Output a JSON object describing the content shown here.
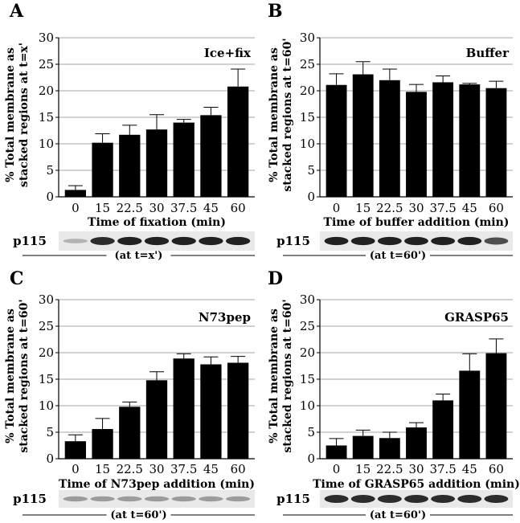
{
  "chart_data": [
    {
      "type": "bar",
      "panel_label": "A",
      "title": "Ice+fix",
      "ylabel": [
        "% Total membrane as",
        "stacked regions at t=x'"
      ],
      "xlabel": "Time of fixation (min)",
      "ylim": [
        0,
        30
      ],
      "yticks": [
        0,
        5,
        10,
        15,
        20,
        25,
        30
      ],
      "categories": [
        "0",
        "15",
        "22.5",
        "30",
        "37.5",
        "45",
        "60"
      ],
      "values": [
        1.3,
        10.2,
        11.7,
        12.7,
        14.0,
        15.4,
        20.8
      ],
      "errors": [
        0.8,
        1.7,
        1.8,
        2.8,
        0.6,
        1.5,
        3.3
      ],
      "blot": {
        "label": "p115",
        "caption": "(at t=x')",
        "intensities": [
          0.25,
          0.85,
          0.9,
          0.9,
          0.9,
          0.9,
          0.9
        ]
      }
    },
    {
      "type": "bar",
      "panel_label": "B",
      "title": "Buffer",
      "ylabel": [
        "% Total membrane as",
        "stacked regions at t=60'"
      ],
      "xlabel": "Time of buffer addition (min)",
      "ylim": [
        0,
        30
      ],
      "yticks": [
        0,
        5,
        10,
        15,
        20,
        25,
        30
      ],
      "categories": [
        "0",
        "15",
        "22.5",
        "30",
        "37.5",
        "45",
        "60"
      ],
      "values": [
        21.1,
        23.1,
        22.0,
        19.8,
        21.6,
        21.2,
        20.5
      ],
      "errors": [
        2.1,
        2.4,
        2.1,
        1.4,
        1.2,
        0.2,
        1.3
      ],
      "blot": {
        "label": "p115",
        "caption": "(at t=60')",
        "intensities": [
          0.9,
          0.9,
          0.9,
          0.9,
          0.9,
          0.9,
          0.7
        ]
      }
    },
    {
      "type": "bar",
      "panel_label": "C",
      "title": "N73pep",
      "ylabel": [
        "% Total membrane as",
        "stacked regions at t=60'"
      ],
      "xlabel": "Time of N73pep addition (min)",
      "ylim": [
        0,
        30
      ],
      "yticks": [
        0,
        5,
        10,
        15,
        20,
        25,
        30
      ],
      "categories": [
        "0",
        "15",
        "22.5",
        "30",
        "37.5",
        "45",
        "60"
      ],
      "values": [
        3.3,
        5.6,
        9.8,
        14.8,
        18.9,
        17.8,
        18.1
      ],
      "errors": [
        1.2,
        2.0,
        0.9,
        1.6,
        0.9,
        1.4,
        1.2
      ],
      "blot": {
        "label": "p115",
        "caption": "(at t=60')",
        "intensities": [
          0.35,
          0.35,
          0.35,
          0.35,
          0.35,
          0.35,
          0.35
        ]
      }
    },
    {
      "type": "bar",
      "panel_label": "D",
      "title": "GRASP65",
      "ylabel": [
        "% Total membrane as",
        "stacked regions at t=60'"
      ],
      "xlabel": "Time of GRASP65 addition (min)",
      "ylim": [
        0,
        30
      ],
      "yticks": [
        0,
        5,
        10,
        15,
        20,
        25,
        30
      ],
      "categories": [
        "0",
        "15",
        "22.5",
        "30",
        "37.5",
        "45",
        "60"
      ],
      "values": [
        2.5,
        4.3,
        3.9,
        5.9,
        11.0,
        16.6,
        19.9
      ],
      "errors": [
        1.3,
        1.1,
        1.1,
        0.9,
        1.2,
        3.2,
        2.7
      ],
      "blot": {
        "label": "p115",
        "caption": "(at t=60')",
        "intensities": [
          0.85,
          0.85,
          0.85,
          0.85,
          0.85,
          0.85,
          0.85
        ]
      }
    }
  ]
}
